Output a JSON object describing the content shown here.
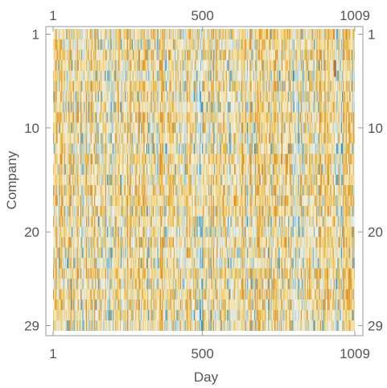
{
  "chart_data": {
    "type": "heatmap",
    "xlabel": "Day",
    "ylabel": "Company",
    "x_range": [
      1,
      1009
    ],
    "y_range": [
      1,
      29
    ],
    "x_ticks": [
      1,
      500,
      1009
    ],
    "y_ticks": [
      1,
      10,
      20,
      29
    ],
    "rows": 29,
    "columns": 1009,
    "y_axis_reversed": true,
    "mirrored_frame_ticks": true,
    "color_scale": [
      "#2a8fc0",
      "#9fcbe0",
      "#f2f2ea",
      "#f3d98a",
      "#e8b23a",
      "#c04a1a"
    ],
    "highlight_cell": {
      "row": 4,
      "day": 940
    }
  }
}
